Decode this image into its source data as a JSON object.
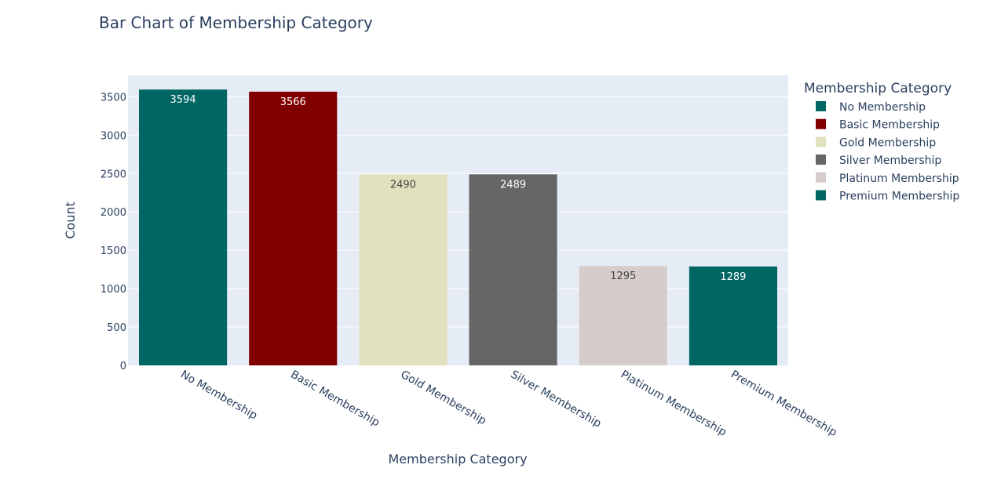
{
  "chart_data": {
    "type": "bar",
    "title": "Bar Chart of Membership Category",
    "xlabel": "Membership Category",
    "ylabel": "Count",
    "categories": [
      "No Membership",
      "Basic Membership",
      "Gold Membership",
      "Silver Membership",
      "Platinum Membership",
      "Premium Membership"
    ],
    "values": [
      3594,
      3566,
      2490,
      2489,
      1295,
      1289
    ],
    "colors": [
      "#006663",
      "#800000",
      "#e1e1bf",
      "#666666",
      "#d7cccc",
      "#006663"
    ],
    "label_colors": [
      "#ffffff",
      "#ffffff",
      "#444444",
      "#ffffff",
      "#444444",
      "#ffffff"
    ],
    "ylim": [
      0,
      3780
    ],
    "yticks": [
      0,
      500,
      1000,
      1500,
      2000,
      2500,
      3000,
      3500
    ],
    "grid": true,
    "plot_background": "#e5ecf6",
    "legend": {
      "title": "Membership Category",
      "placement": "right",
      "entries": [
        "No Membership",
        "Basic Membership",
        "Gold Membership",
        "Silver Membership",
        "Platinum Membership",
        "Premium Membership"
      ]
    }
  }
}
